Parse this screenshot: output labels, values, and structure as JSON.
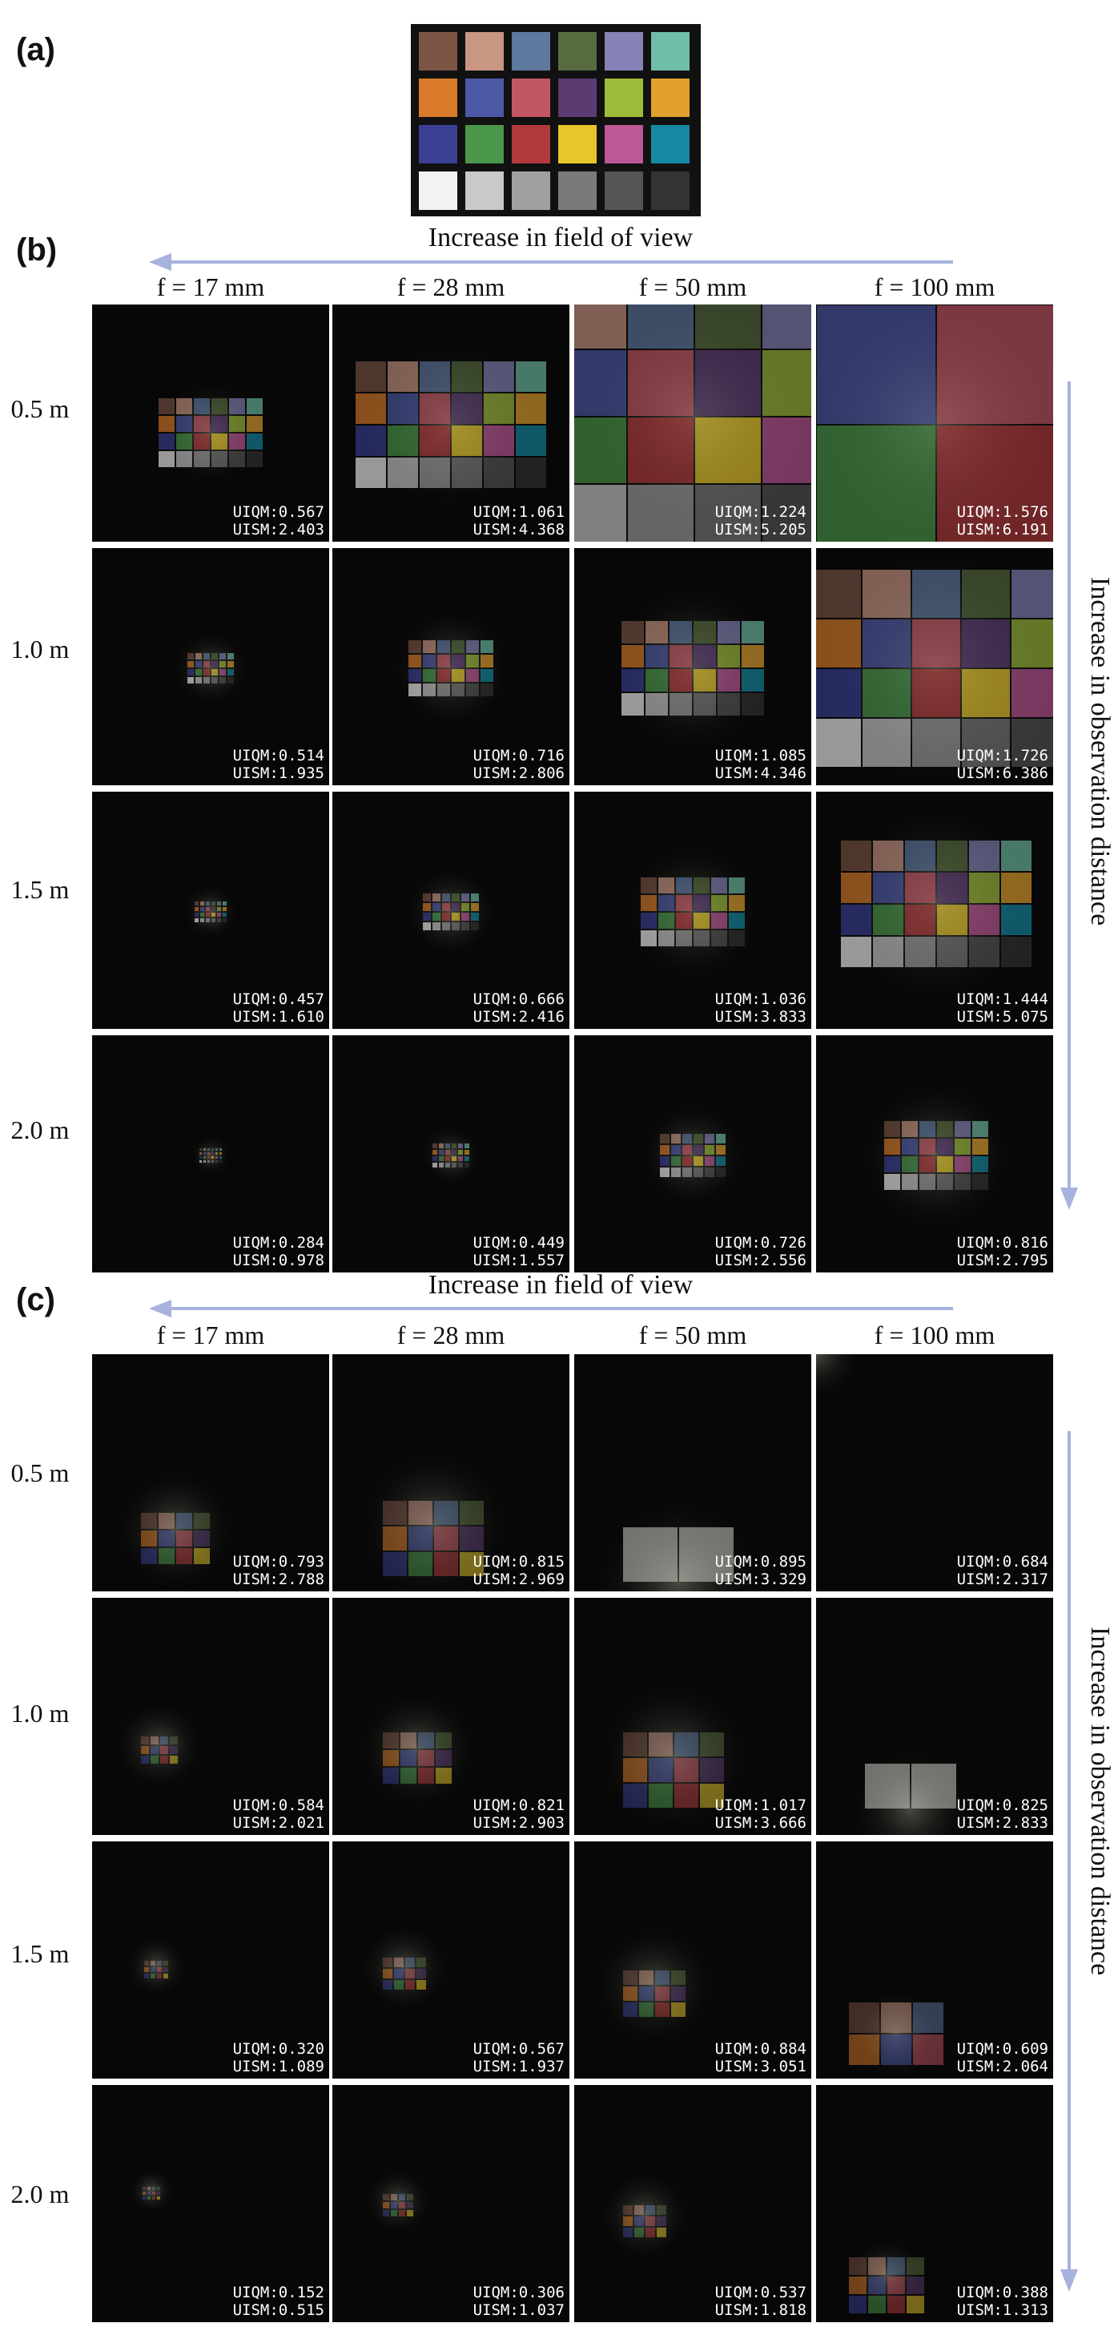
{
  "panel_labels": {
    "a": "(a)",
    "b": "(b)",
    "c": "(c)"
  },
  "checker_colors": [
    [
      "#7b5444",
      "#c99684",
      "#5e78a0",
      "#576b3f",
      "#8682b6",
      "#6fbfa8"
    ],
    [
      "#d97b2a",
      "#4d59a6",
      "#c35664",
      "#5c3b72",
      "#9dba3a",
      "#e2a12e"
    ],
    [
      "#3a3f94",
      "#4a964a",
      "#b23a3c",
      "#e6c62c",
      "#bd5797",
      "#1589a3"
    ],
    [
      "#f2f2f2",
      "#c9c9c9",
      "#a0a0a0",
      "#7a7a7a",
      "#555555",
      "#333333"
    ]
  ],
  "fov_title": "Increase in field of view",
  "distance_title": "Increase in observation distance",
  "focal_lengths": [
    "f = 17 mm",
    "f = 28 mm",
    "f = 50 mm",
    "f = 100 mm"
  ],
  "distances": [
    "0.5 m",
    "1.0 m",
    "1.5 m",
    "2.0 m"
  ],
  "arrow_color": "#a7b2dd",
  "panel_b": {
    "cells": [
      [
        {
          "uiqm": "UIQM:0.567",
          "uism": "UISM:2.403"
        },
        {
          "uiqm": "UIQM:1.061",
          "uism": "UISM:4.368"
        },
        {
          "uiqm": "UIQM:1.224",
          "uism": "UISM:5.205"
        },
        {
          "uiqm": "UIQM:1.576",
          "uism": "UISM:6.191"
        }
      ],
      [
        {
          "uiqm": "UIQM:0.514",
          "uism": "UISM:1.935"
        },
        {
          "uiqm": "UIQM:0.716",
          "uism": "UISM:2.806"
        },
        {
          "uiqm": "UIQM:1.085",
          "uism": "UISM:4.346"
        },
        {
          "uiqm": "UIQM:1.726",
          "uism": "UISM:6.386"
        }
      ],
      [
        {
          "uiqm": "UIQM:0.457",
          "uism": "UISM:1.610"
        },
        {
          "uiqm": "UIQM:0.666",
          "uism": "UISM:2.416"
        },
        {
          "uiqm": "UIQM:1.036",
          "uism": "UISM:3.833"
        },
        {
          "uiqm": "UIQM:1.444",
          "uism": "UISM:5.075"
        }
      ],
      [
        {
          "uiqm": "UIQM:0.284",
          "uism": "UISM:0.978"
        },
        {
          "uiqm": "UIQM:0.449",
          "uism": "UISM:1.557"
        },
        {
          "uiqm": "UIQM:0.726",
          "uism": "UISM:2.556"
        },
        {
          "uiqm": "UIQM:0.816",
          "uism": "UISM:2.795"
        }
      ]
    ]
  },
  "panel_c": {
    "cells": [
      [
        {
          "uiqm": "UIQM:0.793",
          "uism": "UISM:2.788"
        },
        {
          "uiqm": "UIQM:0.815",
          "uism": "UISM:2.969"
        },
        {
          "uiqm": "UIQM:0.895",
          "uism": "UISM:3.329"
        },
        {
          "uiqm": "UIQM:0.684",
          "uism": "UISM:2.317"
        }
      ],
      [
        {
          "uiqm": "UIQM:0.584",
          "uism": "UISM:2.021"
        },
        {
          "uiqm": "UIQM:0.821",
          "uism": "UISM:2.903"
        },
        {
          "uiqm": "UIQM:1.017",
          "uism": "UISM:3.666"
        },
        {
          "uiqm": "UIQM:0.825",
          "uism": "UISM:2.833"
        }
      ],
      [
        {
          "uiqm": "UIQM:0.320",
          "uism": "UISM:1.089"
        },
        {
          "uiqm": "UIQM:0.567",
          "uism": "UISM:1.937"
        },
        {
          "uiqm": "UIQM:0.884",
          "uism": "UISM:3.051"
        },
        {
          "uiqm": "UIQM:0.609",
          "uism": "UISM:2.064"
        }
      ],
      [
        {
          "uiqm": "UIQM:0.152",
          "uism": "UISM:0.515"
        },
        {
          "uiqm": "UIQM:0.306",
          "uism": "UISM:1.037"
        },
        {
          "uiqm": "UIQM:0.537",
          "uism": "UISM:1.818"
        },
        {
          "uiqm": "UIQM:0.388",
          "uism": "UISM:1.313"
        }
      ]
    ]
  }
}
